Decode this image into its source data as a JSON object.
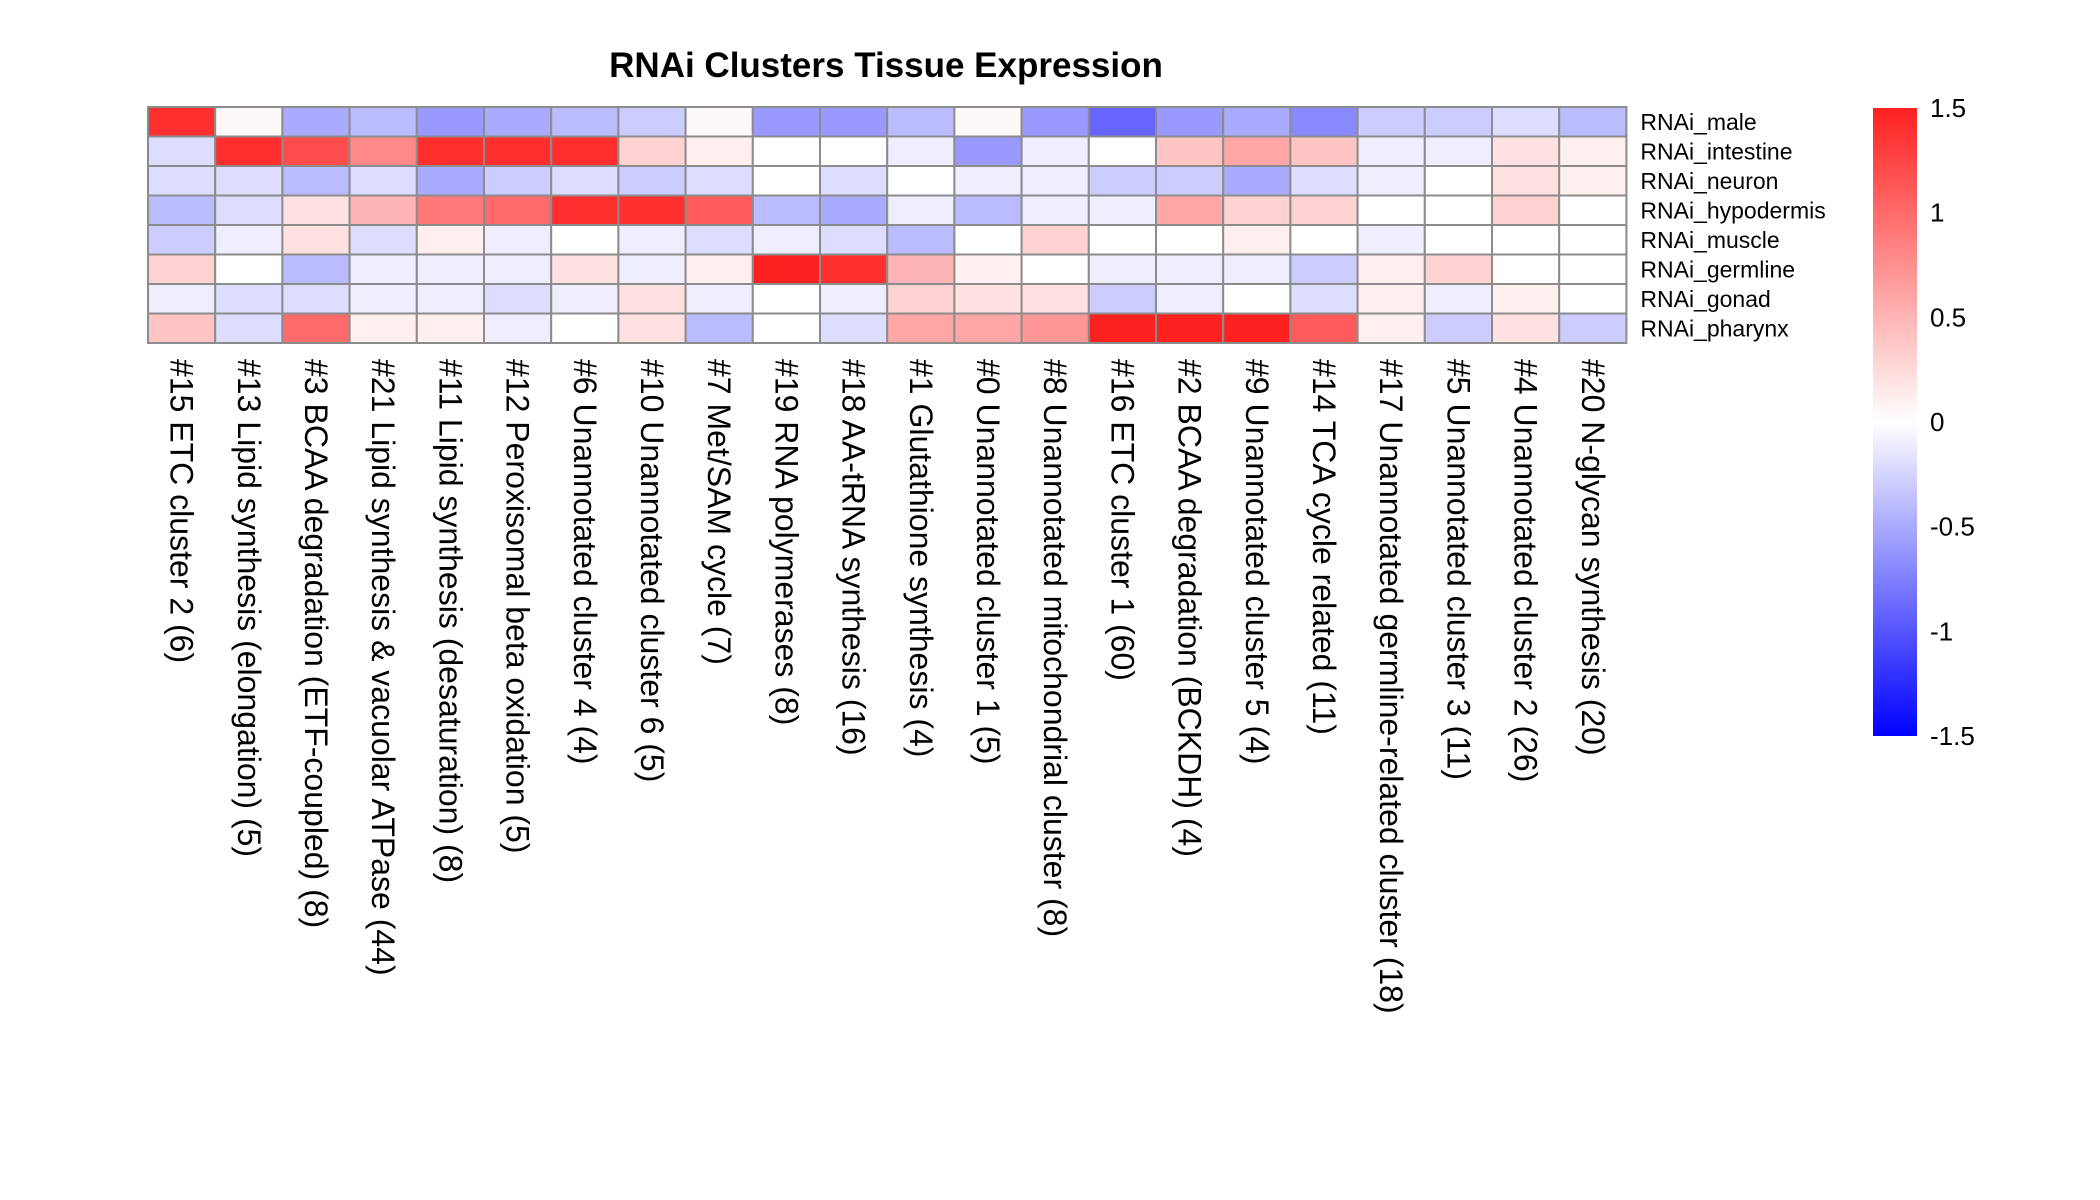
{
  "chart_data": {
    "type": "heatmap",
    "title": "RNAi Clusters Tissue Expression",
    "rows": [
      "RNAi_male",
      "RNAi_intestine",
      "RNAi_neuron",
      "RNAi_hypodermis",
      "RNAi_muscle",
      "RNAi_germline",
      "RNAi_gonad",
      "RNAi_pharynx"
    ],
    "columns": [
      "#15 ETC cluster 2 (6)",
      "#13 Lipid synthesis (elongation) (5)",
      "#3 BCAA degradation (ETF-coupled) (8)",
      "#21 Lipid synthesis & vacuolar ATPase (44)",
      "#11 Lipid synthesis (desaturation) (8)",
      "#12 Peroxisomal beta oxidation (5)",
      "#6 Unannotated cluster 4 (4)",
      "#10 Unannotated cluster 6 (5)",
      "#7 Met/SAM cycle (7)",
      "#19 RNA polymerases (8)",
      "#18 AA-tRNA synthesis (16)",
      "#1 Glutathione synthesis (4)",
      "#0 Unannotated cluster 1 (5)",
      "#8 Unannotated mitochondrial cluster (8)",
      "#16 ETC cluster 1 (60)",
      "#2 BCAA degradation (BCKDH) (4)",
      "#9 Unannotated cluster 5 (4)",
      "#14 TCA cycle related (11)",
      "#17 Unannotated germline-related cluster (18)",
      "#5 Unannotated cluster 3 (11)",
      "#4 Unannotated cluster 2 (26)",
      "#20 N-glycan synthesis (20)"
    ],
    "values": [
      [
        1.4,
        0.05,
        -0.5,
        -0.4,
        -0.6,
        -0.5,
        -0.4,
        -0.3,
        0.05,
        -0.6,
        -0.6,
        -0.4,
        0.05,
        -0.6,
        -0.9,
        -0.6,
        -0.5,
        -0.7,
        -0.3,
        -0.3,
        -0.2,
        -0.4
      ],
      [
        -0.2,
        1.4,
        1.2,
        0.8,
        1.4,
        1.4,
        1.4,
        0.3,
        0.1,
        0.0,
        0.0,
        -0.1,
        -0.6,
        -0.1,
        0.0,
        0.4,
        0.6,
        0.4,
        -0.1,
        -0.1,
        0.2,
        0.1
      ],
      [
        -0.2,
        -0.2,
        -0.4,
        -0.2,
        -0.5,
        -0.3,
        -0.2,
        -0.3,
        -0.2,
        0.0,
        -0.2,
        0.0,
        -0.1,
        -0.1,
        -0.3,
        -0.3,
        -0.5,
        -0.2,
        -0.1,
        0.0,
        0.2,
        0.1
      ],
      [
        -0.4,
        -0.2,
        0.2,
        0.5,
        0.9,
        1.0,
        1.4,
        1.4,
        1.1,
        -0.4,
        -0.5,
        -0.1,
        -0.4,
        -0.1,
        -0.1,
        0.6,
        0.3,
        0.3,
        0.0,
        0.0,
        0.3,
        0.0
      ],
      [
        -0.3,
        -0.1,
        0.2,
        -0.2,
        0.1,
        -0.1,
        0.0,
        -0.1,
        -0.2,
        -0.1,
        -0.2,
        -0.4,
        0.0,
        0.3,
        0.0,
        0.0,
        0.1,
        0.0,
        -0.1,
        0.0,
        0.0,
        0.0
      ],
      [
        0.3,
        0.0,
        -0.4,
        -0.1,
        -0.1,
        -0.1,
        0.2,
        -0.1,
        0.1,
        1.5,
        1.4,
        0.5,
        0.1,
        0.0,
        -0.1,
        -0.1,
        -0.1,
        -0.3,
        0.1,
        0.3,
        0.0,
        0.0
      ],
      [
        -0.1,
        -0.2,
        -0.2,
        -0.1,
        -0.1,
        -0.2,
        -0.1,
        0.2,
        -0.1,
        0.0,
        -0.1,
        0.3,
        0.2,
        0.2,
        -0.3,
        -0.1,
        0.0,
        -0.2,
        0.1,
        -0.1,
        0.1,
        0.0
      ],
      [
        0.4,
        -0.2,
        1.0,
        0.1,
        0.1,
        -0.1,
        0.0,
        0.2,
        -0.4,
        0.0,
        -0.2,
        0.6,
        0.6,
        0.7,
        1.6,
        1.6,
        1.6,
        1.1,
        0.1,
        -0.3,
        0.2,
        -0.3
      ]
    ],
    "color_scale": {
      "min": -1.5,
      "max": 1.5,
      "low_color": "#0000ff",
      "mid_color": "#ffffff",
      "high_color": "#ff2020",
      "ticks": [
        "1.5",
        "1",
        "0.5",
        "0",
        "-0.5",
        "-1",
        "-1.5"
      ]
    },
    "cell_border_color": "#8c8c8c"
  }
}
